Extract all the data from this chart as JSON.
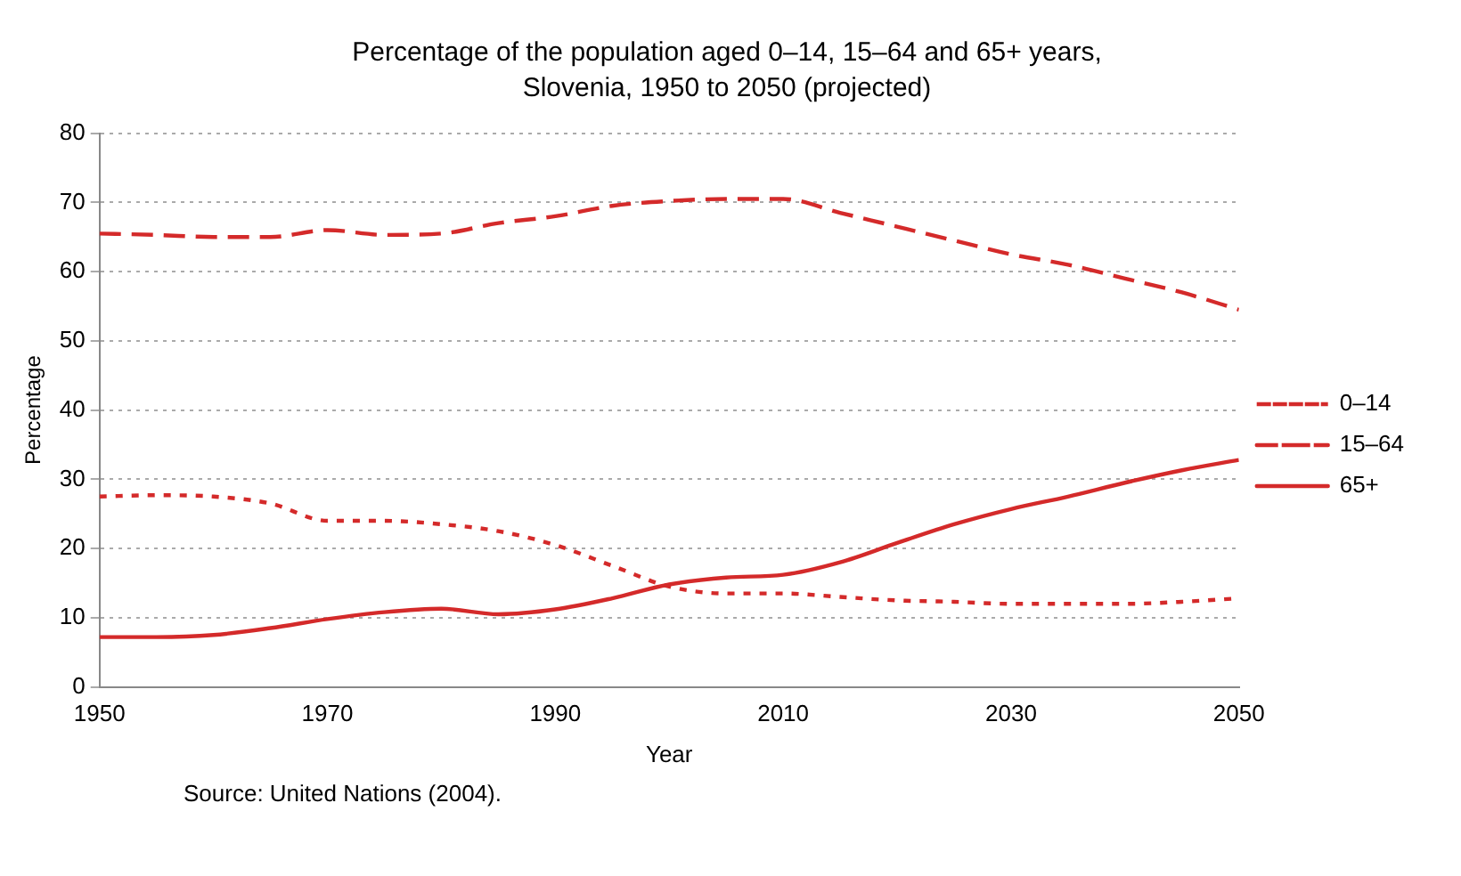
{
  "chart_data": {
    "type": "line",
    "title": "Percentage of the population aged 0–14, 15–64 and 65+ years, Slovenia, 1950 to 2050 (projected)",
    "xlabel": "Year",
    "ylabel": "Percentage",
    "annotations": [
      "Source: United Nations (2004)."
    ],
    "x": [
      1950,
      1955,
      1960,
      1965,
      1970,
      1975,
      1980,
      1985,
      1990,
      1995,
      2000,
      2005,
      2010,
      2015,
      2020,
      2025,
      2030,
      2035,
      2040,
      2045,
      2050
    ],
    "series": [
      {
        "name": "0–14",
        "color": "#d42a2a",
        "line_style": "dotted",
        "values": [
          27.5,
          27.7,
          27.5,
          26.5,
          24,
          24,
          23.5,
          22.5,
          20.5,
          17.5,
          14.5,
          13.5,
          13.5,
          13,
          12.5,
          12.3,
          12,
          12,
          12,
          12.3,
          12.8
        ]
      },
      {
        "name": "15–64",
        "color": "#d42a2a",
        "line_style": "dashed",
        "values": [
          65.5,
          65.3,
          65,
          65,
          66,
          65.3,
          65.5,
          67,
          68,
          69.5,
          70.2,
          70.5,
          70.5,
          68.5,
          66.5,
          64.5,
          62.5,
          61,
          59,
          57,
          54.5
        ]
      },
      {
        "name": "65+",
        "color": "#d42a2a",
        "line_style": "solid",
        "values": [
          7.2,
          7.2,
          7.5,
          8.5,
          9.8,
          10.8,
          11.3,
          10.5,
          11.2,
          12.8,
          14.8,
          15.8,
          16.2,
          18,
          20.8,
          23.5,
          25.7,
          27.5,
          29.5,
          31.3,
          32.8
        ]
      }
    ],
    "xlim": [
      1950,
      2050
    ],
    "xticks": [
      1950,
      1970,
      1990,
      2010,
      2030,
      2050
    ],
    "ylim": [
      0,
      80
    ],
    "yticks": [
      0,
      10,
      20,
      30,
      40,
      50,
      60,
      70,
      80
    ],
    "grid": "y",
    "legend": "right",
    "marker": "none"
  }
}
